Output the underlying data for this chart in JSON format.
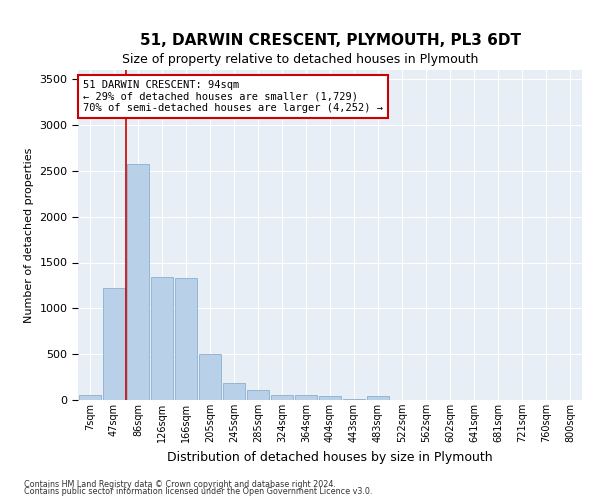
{
  "title": "51, DARWIN CRESCENT, PLYMOUTH, PL3 6DT",
  "subtitle": "Size of property relative to detached houses in Plymouth",
  "xlabel": "Distribution of detached houses by size in Plymouth",
  "ylabel": "Number of detached properties",
  "categories": [
    "7sqm",
    "47sqm",
    "86sqm",
    "126sqm",
    "166sqm",
    "205sqm",
    "245sqm",
    "285sqm",
    "324sqm",
    "364sqm",
    "404sqm",
    "443sqm",
    "483sqm",
    "522sqm",
    "562sqm",
    "602sqm",
    "641sqm",
    "681sqm",
    "721sqm",
    "760sqm",
    "800sqm"
  ],
  "values": [
    55,
    1220,
    2580,
    1340,
    1330,
    500,
    190,
    105,
    50,
    50,
    45,
    10,
    45,
    0,
    0,
    0,
    0,
    0,
    0,
    0,
    0
  ],
  "bar_color": "#b8d0e8",
  "bar_edge_color": "#8ab0d0",
  "background_color": "#e8eef5",
  "grid_color": "#ffffff",
  "vline_color": "#cc0000",
  "vline_x": 2.0,
  "annotation_text": "51 DARWIN CRESCENT: 94sqm\n← 29% of detached houses are smaller (1,729)\n70% of semi-detached houses are larger (4,252) →",
  "annotation_box_facecolor": "#ffffff",
  "annotation_box_edgecolor": "#cc0000",
  "ylim": [
    0,
    3600
  ],
  "yticks": [
    0,
    500,
    1000,
    1500,
    2000,
    2500,
    3000,
    3500
  ],
  "fig_facecolor": "#ffffff",
  "title_fontsize": 11,
  "subtitle_fontsize": 9,
  "ylabel_fontsize": 8,
  "xlabel_fontsize": 9,
  "footnote1": "Contains HM Land Registry data © Crown copyright and database right 2024.",
  "footnote2": "Contains public sector information licensed under the Open Government Licence v3.0."
}
